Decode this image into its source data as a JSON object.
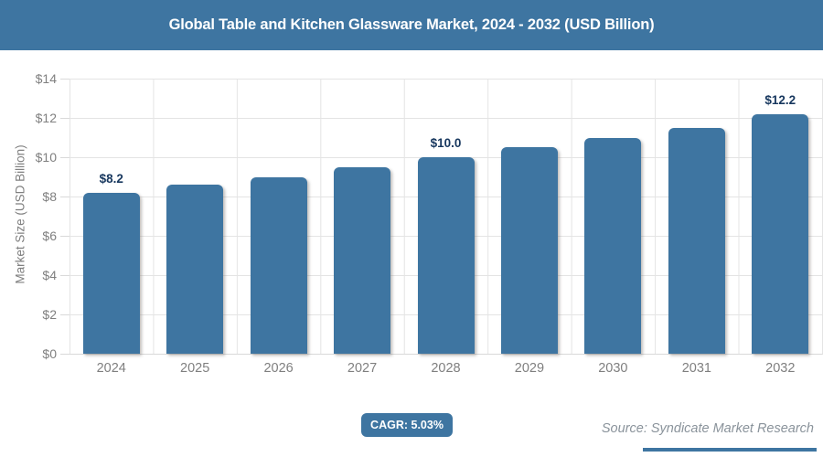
{
  "header": {
    "title": "Global Table and Kitchen Glassware Market, 2024 - 2032 (USD Billion)",
    "bg_color": "#3e75a1"
  },
  "chart_data": {
    "type": "bar",
    "categories": [
      "2024",
      "2025",
      "2026",
      "2027",
      "2028",
      "2029",
      "2030",
      "2031",
      "2032"
    ],
    "values": [
      8.2,
      8.6,
      9.0,
      9.5,
      10.0,
      10.5,
      11.0,
      11.5,
      12.2
    ],
    "bar_labels": [
      "$8.2",
      "",
      "",
      "",
      "$10.0",
      "",
      "",
      "",
      "$12.2"
    ],
    "title": "Global Table and Kitchen Glassware Market, 2024 - 2032 (USD Billion)",
    "xlabel": "",
    "ylabel": "Market Size (USD Billion)",
    "ylim": [
      0,
      14
    ],
    "ytick_step": 2,
    "ytick_labels": [
      "$0",
      "$2",
      "$4",
      "$6",
      "$8",
      "$10",
      "$12",
      "$14"
    ],
    "grid": true,
    "legend": "none",
    "bar_color": "#3e75a1",
    "bar_label_color": "#17375e",
    "axis_text_color": "#7f7f7f",
    "gridline_color": "#e4e4e4"
  },
  "footer": {
    "cagr_label": "CAGR: 5.03%",
    "cagr_badge_color": "#3e75a1",
    "source_label": "Source: Syndicate Market Research",
    "rule_color": "#3e75a1"
  }
}
